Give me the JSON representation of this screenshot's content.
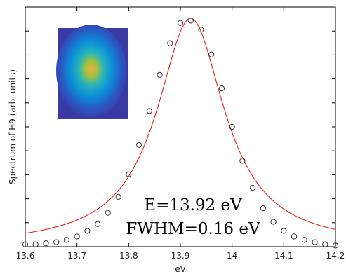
{
  "chart_data": {
    "type": "scatter",
    "title": "",
    "xlabel": "eV",
    "ylabel": "Spectrum of H9 (arb. units)",
    "xlim": [
      13.6,
      14.2
    ],
    "ylim": [
      0,
      1.06
    ],
    "xticks": [
      13.6,
      13.7,
      13.8,
      13.9,
      14.0,
      14.1,
      14.2
    ],
    "xtick_labels": [
      "13.6",
      "13.7",
      "13.8",
      "13.9",
      "14",
      "14.1",
      "14.2"
    ],
    "y_tick_count": 9,
    "y_tick_labels": "none",
    "grid": false,
    "legend": "none",
    "series": [
      {
        "kind": "markers",
        "marker": "open-circle",
        "color": "#333333",
        "x": [
          13.6,
          13.62,
          13.64,
          13.66,
          13.68,
          13.7,
          13.72,
          13.74,
          13.76,
          13.78,
          13.8,
          13.82,
          13.84,
          13.86,
          13.88,
          13.9,
          13.92,
          13.94,
          13.96,
          13.98,
          14.0,
          14.02,
          14.04,
          14.06,
          14.08,
          14.1,
          14.12,
          14.14,
          14.16,
          14.18,
          14.2
        ],
        "y": [
          0.01,
          0.01,
          0.015,
          0.02,
          0.03,
          0.045,
          0.07,
          0.1,
          0.15,
          0.22,
          0.32,
          0.45,
          0.6,
          0.76,
          0.9,
          0.99,
          1.0,
          0.96,
          0.85,
          0.7,
          0.53,
          0.38,
          0.26,
          0.17,
          0.11,
          0.07,
          0.045,
          0.03,
          0.02,
          0.01,
          0.005
        ]
      },
      {
        "kind": "fit-line",
        "color": "#e8201a",
        "fit": "lorentzian",
        "center": 13.92,
        "fwhm": 0.16,
        "amplitude": 1.01,
        "baseline": 0.0
      }
    ],
    "annotations": [
      {
        "text": "E=13.92 eV"
      },
      {
        "text": "FWHM=0.16 eV"
      }
    ],
    "inset_image": {
      "kind": "heatmap",
      "colormap": "parula",
      "description_colors": [
        "#3a3aa5",
        "#0a8fd8",
        "#2ab4b9",
        "#f0ae44"
      ]
    }
  }
}
